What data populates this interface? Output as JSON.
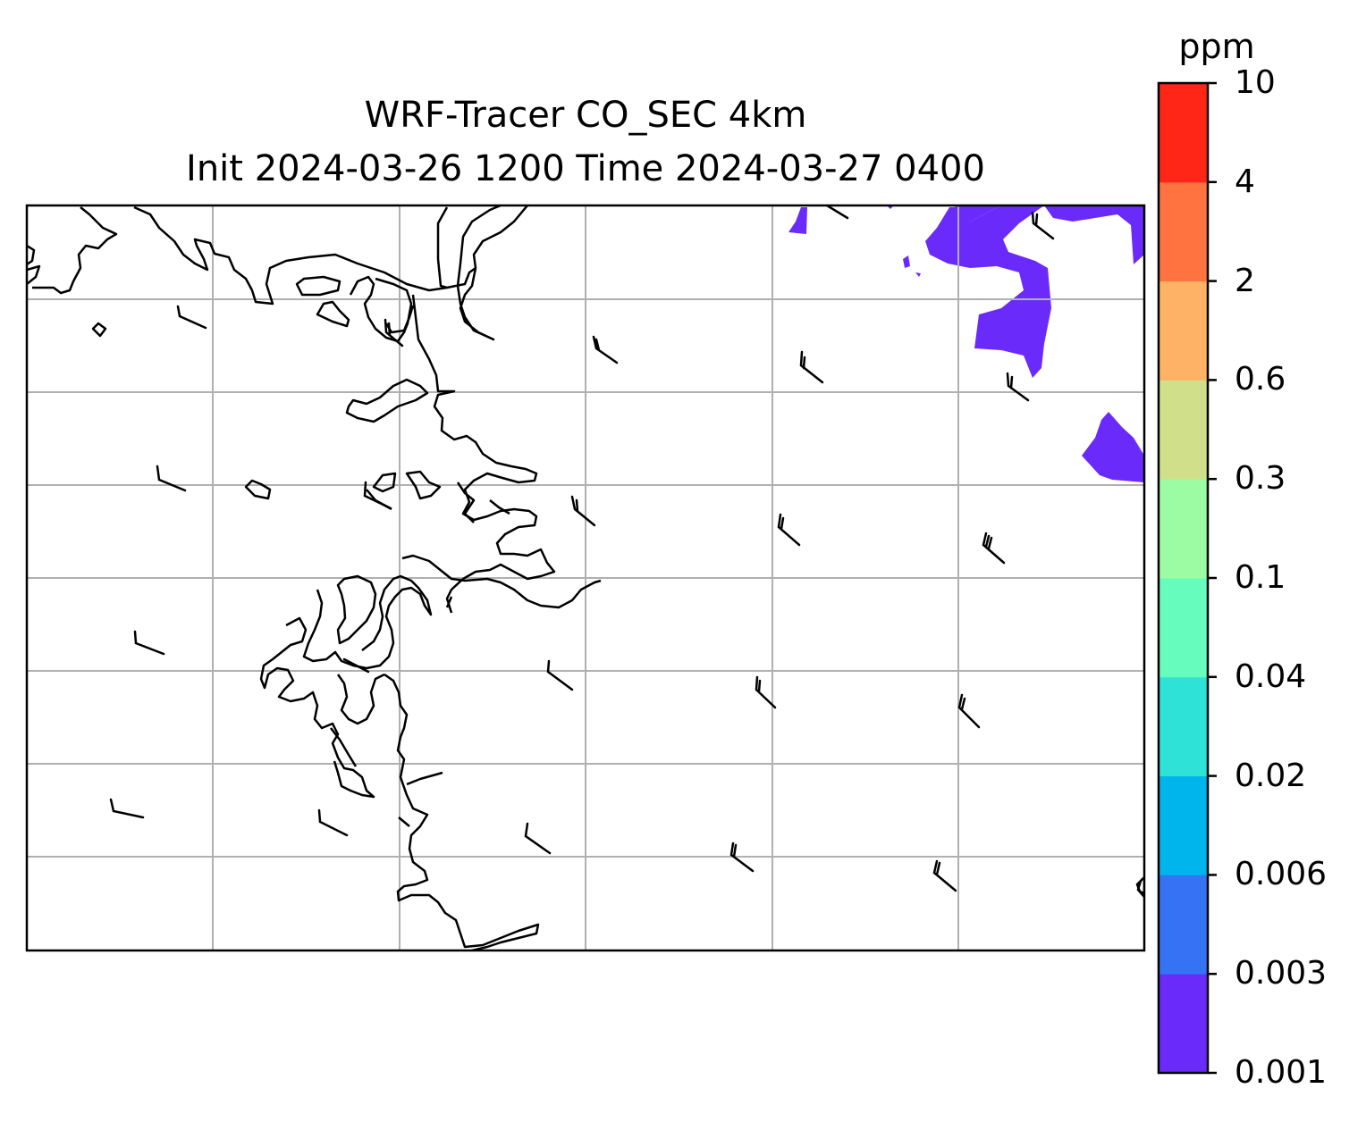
{
  "title": {
    "line1": "WRF-Tracer CO_SEC 4km",
    "line2": "Init 2024-03-26 1200 Time 2024-03-27 0400"
  },
  "colorbar": {
    "unit": "ppm",
    "levels": [
      "0.001",
      "0.003",
      "0.006",
      "0.02",
      "0.04",
      "0.1",
      "0.3",
      "0.6",
      "2",
      "4",
      "10"
    ],
    "colors": [
      "#6a2bfa",
      "#3572f4",
      "#00b4ec",
      "#2ee2d8",
      "#66fcbe",
      "#9cfca4",
      "#d0e08a",
      "#feb266",
      "#ff7340",
      "#ff2618"
    ]
  },
  "map": {
    "gridlines": true,
    "gridline_color": "#b0b0b0",
    "coastline_color": "#000000",
    "tracer_fill_color": "#6a2bfa",
    "wind_barbs": "yes"
  }
}
